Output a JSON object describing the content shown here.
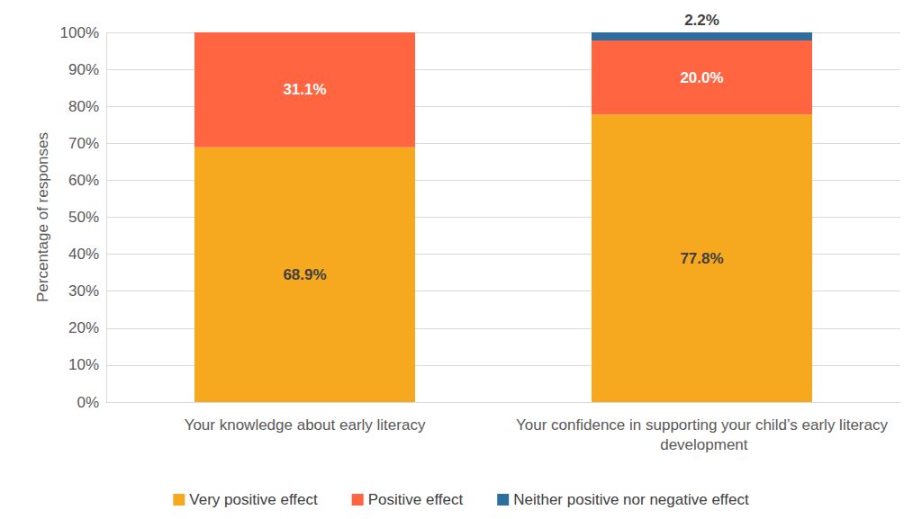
{
  "chart_data": {
    "type": "bar",
    "stacked": true,
    "data_labels": true,
    "grid": true,
    "legend": "bottom",
    "y_label": "Percentage of responses",
    "categories": [
      "Your knowledge about early literacy",
      "Your confidence in supporting your child’s early literacy development"
    ],
    "ylim": [
      0,
      100
    ],
    "yticks": [
      {
        "value": 0,
        "label": "0%"
      },
      {
        "value": 10,
        "label": "10%"
      },
      {
        "value": 20,
        "label": "20%"
      },
      {
        "value": 30,
        "label": "30%"
      },
      {
        "value": 40,
        "label": "40%"
      },
      {
        "value": 50,
        "label": "50%"
      },
      {
        "value": 60,
        "label": "60%"
      },
      {
        "value": 70,
        "label": "70%"
      },
      {
        "value": 80,
        "label": "80%"
      },
      {
        "value": 90,
        "label": "90%"
      },
      {
        "value": 100,
        "label": "100%"
      }
    ],
    "series": [
      {
        "name": "Very positive effect",
        "color": "#f6a81f",
        "values": [
          68.9,
          77.8
        ],
        "value_labels": [
          "68.9%",
          "77.8%"
        ]
      },
      {
        "name": "Positive effect",
        "color": "#ff6541",
        "values": [
          31.1,
          20.0
        ],
        "value_labels": [
          "31.1%",
          "20.0%"
        ]
      },
      {
        "name": "Neither positive nor negative effect",
        "color": "#2e6e9e",
        "values": [
          null,
          2.2
        ],
        "value_labels": [
          null,
          "2.2%"
        ]
      }
    ]
  }
}
